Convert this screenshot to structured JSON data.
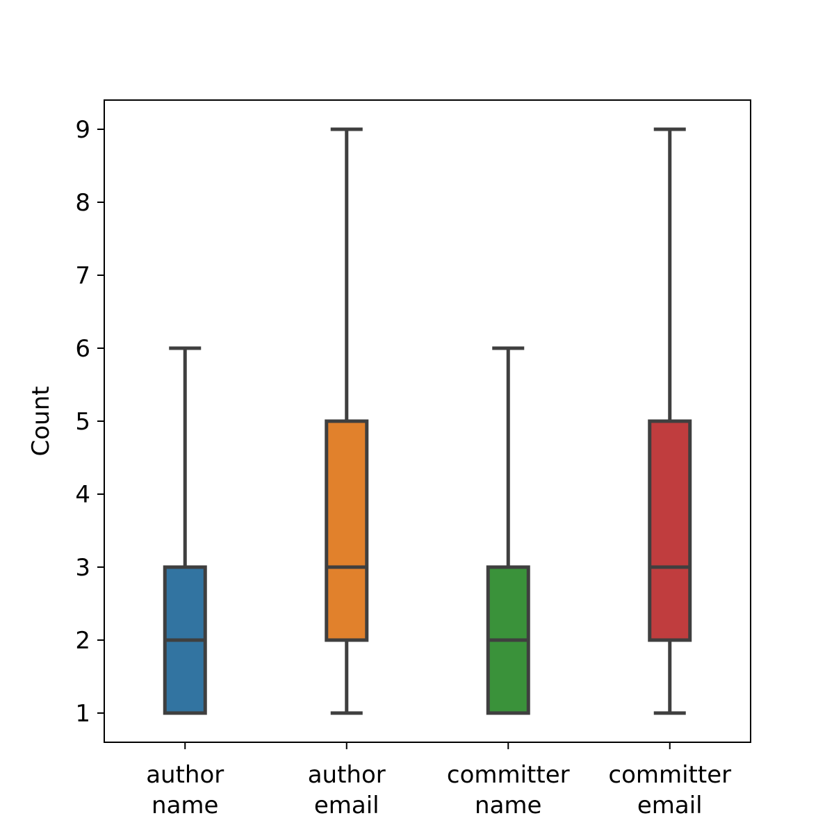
{
  "chart_data": {
    "type": "box",
    "ylabel": "Count",
    "xlabel": "",
    "ylim": [
      0.6,
      9.4
    ],
    "yticks": [
      1,
      2,
      3,
      4,
      5,
      6,
      7,
      8,
      9
    ],
    "categories": [
      [
        "author",
        "name"
      ],
      [
        "author",
        "email"
      ],
      [
        "committer",
        "name"
      ],
      [
        "committer",
        "email"
      ]
    ],
    "boxes": [
      {
        "whisker_low": 1,
        "q1": 1,
        "median": 2,
        "q3": 3,
        "whisker_high": 6,
        "color": "#3274a1"
      },
      {
        "whisker_low": 1,
        "q1": 2,
        "median": 3,
        "q3": 5,
        "whisker_high": 9,
        "color": "#e1812c"
      },
      {
        "whisker_low": 1,
        "q1": 1,
        "median": 2,
        "q3": 3,
        "whisker_high": 6,
        "color": "#3a923a"
      },
      {
        "whisker_low": 1,
        "q1": 2,
        "median": 3,
        "q3": 5,
        "whisker_high": 9,
        "color": "#c03d3e"
      }
    ],
    "line_color": "#3f3f3f",
    "grid": false,
    "legend": "none"
  }
}
